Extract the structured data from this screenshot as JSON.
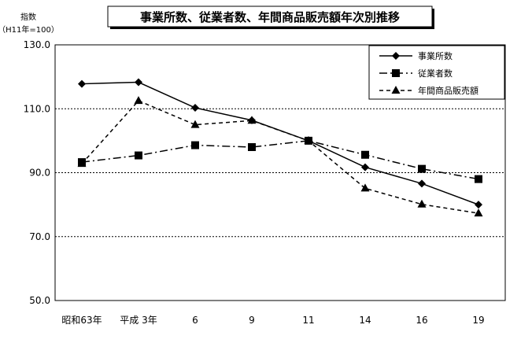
{
  "chart_data": {
    "type": "line",
    "title": "事業所数、従業者数、年間商品販売額年次別推移",
    "ylabel": "指数",
    "ylabel_sub": "（H11年=100）",
    "ylim": [
      50,
      130
    ],
    "yticks": [
      "50.0",
      "70.0",
      "90.0",
      "110.0",
      "130.0"
    ],
    "ytick_values": [
      50,
      70,
      90,
      110,
      130
    ],
    "gridlines": [
      70,
      90,
      110
    ],
    "categories": [
      "昭和63年",
      "平成 3年",
      "6",
      "9",
      "11",
      "14",
      "16",
      "19"
    ],
    "legend_position": "top-right",
    "series": [
      {
        "name": "事業所数",
        "marker": "diamond",
        "line": "solid",
        "values": [
          117.8,
          118.3,
          110.3,
          106.4,
          100.0,
          91.7,
          86.6,
          80.0
        ]
      },
      {
        "name": "従業者数",
        "marker": "square",
        "line": "dashdot",
        "values": [
          93.3,
          95.4,
          98.6,
          98.0,
          100.0,
          95.6,
          91.2,
          88.0
        ]
      },
      {
        "name": "年間商品販売額",
        "marker": "triangle",
        "line": "dashed",
        "values": [
          92.8,
          112.5,
          105.0,
          106.3,
          100.0,
          85.1,
          80.1,
          77.3
        ]
      }
    ]
  }
}
